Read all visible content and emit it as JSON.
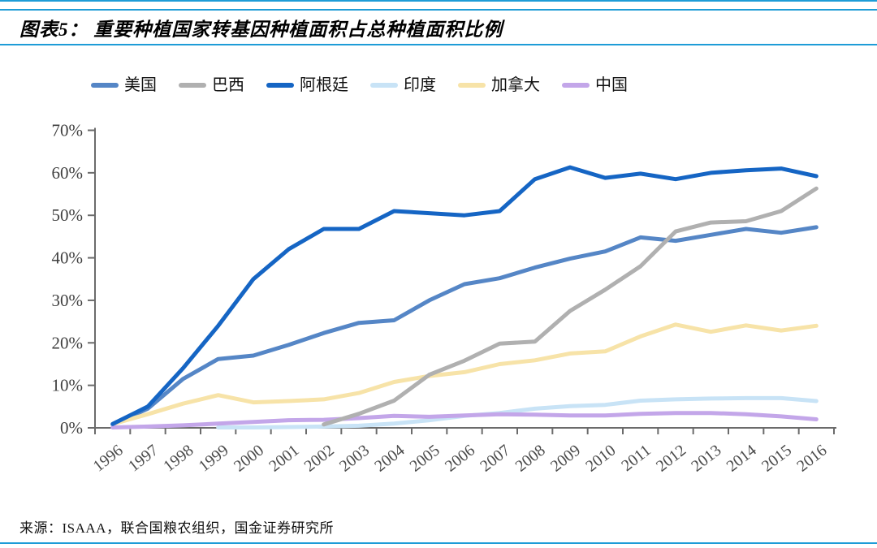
{
  "header": {
    "title": "图表5： 重要种植国家转基因种植面积占总种植面积比例"
  },
  "source": {
    "label": "来源：ISAAA，联合国粮农组织，国金证券研究所"
  },
  "colors": {
    "rule_blue": "#1E9CD7",
    "axis": "#6b6b6b",
    "tick_text": "#4a4a4a"
  },
  "chart_data": {
    "type": "line",
    "title": "重要种植国家转基因种植面积占总种植面积比例",
    "categories": [
      "1996",
      "1997",
      "1998",
      "1999",
      "2000",
      "2001",
      "2002",
      "2003",
      "2004",
      "2005",
      "2006",
      "2007",
      "2008",
      "2009",
      "2010",
      "2011",
      "2012",
      "2013",
      "2014",
      "2015",
      "2016"
    ],
    "xlabel": "",
    "ylabel": "",
    "ylim": [
      0,
      70
    ],
    "ytick_step": 10,
    "ytick_labels": [
      "0%",
      "10%",
      "20%",
      "30%",
      "40%",
      "50%",
      "60%",
      "70%"
    ],
    "grid": false,
    "legend_position": "top",
    "series": [
      {
        "name": "美国",
        "key": "usa",
        "color": "#5586C6",
        "values": [
          0.8,
          4.5,
          11.5,
          16.2,
          17.0,
          19.5,
          22.3,
          24.7,
          25.3,
          30.0,
          33.8,
          35.2,
          37.7,
          39.8,
          41.5,
          44.8,
          44.0,
          45.4,
          46.8,
          45.9,
          47.2
        ]
      },
      {
        "name": "巴西",
        "key": "brazil",
        "color": "#B0B0B0",
        "values": [
          null,
          null,
          null,
          null,
          null,
          null,
          0.8,
          3.3,
          6.4,
          12.5,
          15.8,
          19.8,
          20.3,
          27.5,
          32.5,
          38.0,
          46.2,
          48.3,
          48.6,
          51.0,
          56.3
        ]
      },
      {
        "name": "阿根廷",
        "key": "argentina",
        "color": "#1565C4",
        "values": [
          0.9,
          5.0,
          14.0,
          24.0,
          35.0,
          42.0,
          46.8,
          46.8,
          51.0,
          50.5,
          50.0,
          51.0,
          58.5,
          61.3,
          58.8,
          59.8,
          58.5,
          60.0,
          60.6,
          61.0,
          59.2
        ]
      },
      {
        "name": "印度",
        "key": "india",
        "color": "#C8E3F6",
        "values": [
          null,
          null,
          null,
          0.1,
          0.1,
          0.2,
          0.3,
          0.5,
          1.0,
          1.8,
          2.8,
          3.5,
          4.5,
          5.1,
          5.4,
          6.4,
          6.7,
          6.9,
          7.0,
          7.0,
          6.3
        ]
      },
      {
        "name": "加拿大",
        "key": "canada",
        "color": "#F7E3A8",
        "values": [
          0.9,
          3.2,
          5.7,
          7.7,
          6.0,
          6.3,
          6.7,
          8.2,
          10.8,
          12.2,
          13.1,
          15.0,
          15.9,
          17.5,
          18.0,
          21.5,
          24.3,
          22.6,
          24.1,
          22.9,
          24.0
        ]
      },
      {
        "name": "中国",
        "key": "china",
        "color": "#C3A6E9",
        "values": [
          0.1,
          0.3,
          0.6,
          1.0,
          1.4,
          1.8,
          1.9,
          2.3,
          2.8,
          2.6,
          2.9,
          3.2,
          3.1,
          2.9,
          2.9,
          3.3,
          3.5,
          3.5,
          3.2,
          2.7,
          2.0
        ]
      }
    ],
    "draw_order": [
      "usa",
      "india",
      "canada",
      "china",
      "brazil",
      "argentina"
    ]
  }
}
